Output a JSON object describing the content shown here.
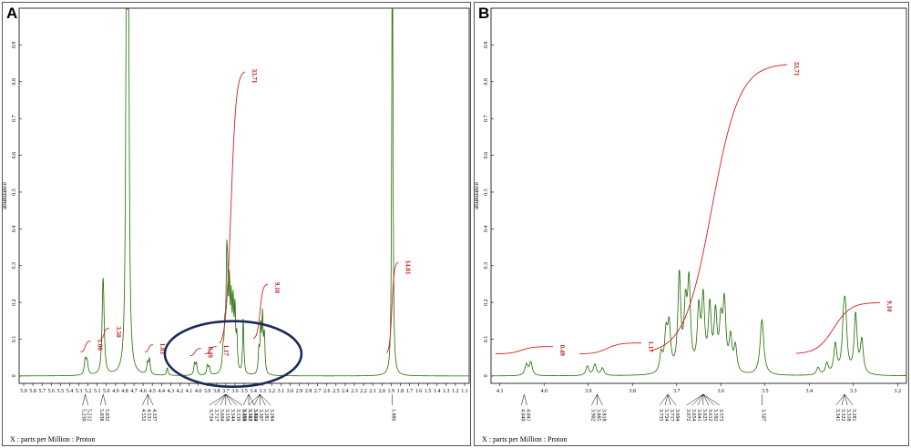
{
  "panels": [
    {
      "label": "A",
      "footer": "X : parts per Million : Proton",
      "chart_data": {
        "type": "line",
        "x_reversed": true,
        "xlim": [
          5.95,
          1.05
        ],
        "ylim": [
          -0.02,
          1.0
        ],
        "ylabel": "abundance",
        "x_ticks": [
          "5.9",
          "5.8",
          "5.7",
          "5.6",
          "5.5",
          "5.4",
          "5.3",
          "5.2",
          "5.1",
          "5.0",
          "4.9",
          "4.8",
          "4.7",
          "4.6",
          "4.5",
          "4.4",
          "4.3",
          "4.2",
          "4.1",
          "4.0",
          "3.9",
          "3.8",
          "3.7",
          "3.6",
          "3.5",
          "3.4",
          "3.3",
          "3.2",
          "3.1",
          "3.0",
          "2.9",
          "2.8",
          "2.7",
          "2.6",
          "2.5",
          "2.4",
          "2.3",
          "2.2",
          "2.1",
          "2.0",
          "1.9",
          "1.8",
          "1.7",
          "1.6",
          "1.5",
          "1.4",
          "1.3",
          "1.2",
          "1.1"
        ],
        "y_ticks": [
          "0",
          "0.1",
          "0.2",
          "0.3",
          "0.4",
          "0.5",
          "0.6",
          "0.7",
          "0.8",
          "0.9"
        ],
        "peaks": [
          {
            "x": 5.23,
            "h": 0.04,
            "w": 0.012
          },
          {
            "x": 5.21,
            "h": 0.035,
            "w": 0.012
          },
          {
            "x": 5.038,
            "h": 0.16,
            "w": 0.012
          },
          {
            "x": 5.032,
            "h": 0.12,
            "w": 0.012
          },
          {
            "x": 4.78,
            "h": 1.2,
            "w": 0.01
          },
          {
            "x": 4.76,
            "h": 1.0,
            "w": 0.01
          },
          {
            "x": 4.552,
            "h": 0.03,
            "w": 0.01
          },
          {
            "x": 4.531,
            "h": 0.04,
            "w": 0.01
          },
          {
            "x": 4.337,
            "h": 0.02,
            "w": 0.01
          },
          {
            "x": 4.04,
            "h": 0.03,
            "w": 0.01
          },
          {
            "x": 4.02,
            "h": 0.03,
            "w": 0.01
          },
          {
            "x": 3.9,
            "h": 0.025,
            "w": 0.01
          },
          {
            "x": 3.88,
            "h": 0.02,
            "w": 0.01
          },
          {
            "x": 3.73,
            "h": 0.05,
            "w": 0.01
          },
          {
            "x": 3.71,
            "h": 0.1,
            "w": 0.01
          },
          {
            "x": 3.69,
            "h": 0.25,
            "w": 0.008
          },
          {
            "x": 3.68,
            "h": 0.18,
            "w": 0.008
          },
          {
            "x": 3.66,
            "h": 0.21,
            "w": 0.008
          },
          {
            "x": 3.64,
            "h": 0.17,
            "w": 0.008
          },
          {
            "x": 3.62,
            "h": 0.17,
            "w": 0.008
          },
          {
            "x": 3.6,
            "h": 0.16,
            "w": 0.008
          },
          {
            "x": 3.58,
            "h": 0.09,
            "w": 0.008
          },
          {
            "x": 3.51,
            "h": 0.15,
            "w": 0.008
          },
          {
            "x": 3.34,
            "h": 0.06,
            "w": 0.008
          },
          {
            "x": 3.32,
            "h": 0.12,
            "w": 0.008
          },
          {
            "x": 3.3,
            "h": 0.15,
            "w": 0.008
          },
          {
            "x": 3.28,
            "h": 0.1,
            "w": 0.008
          },
          {
            "x": 1.888,
            "h": 1.0,
            "w": 0.006
          },
          {
            "x": 1.884,
            "h": 0.7,
            "w": 0.006
          }
        ],
        "integrals": [
          {
            "from": 5.28,
            "to": 5.17,
            "y0": 0.065,
            "rise": 0.03,
            "label": "1.00"
          },
          {
            "from": 5.07,
            "to": 4.97,
            "y0": 0.1,
            "rise": 0.03,
            "label": "3.50"
          },
          {
            "from": 4.58,
            "to": 4.49,
            "y0": 0.065,
            "rise": 0.02,
            "label": "1.03"
          },
          {
            "from": 4.09,
            "to": 3.97,
            "y0": 0.055,
            "rise": 0.02,
            "label": "0.49"
          },
          {
            "from": 3.93,
            "to": 3.8,
            "y0": 0.06,
            "rise": 0.02,
            "label": "1.17"
          },
          {
            "from": 3.77,
            "to": 3.49,
            "y0": 0.08,
            "rise": 0.75,
            "label": "33.71"
          },
          {
            "from": 3.4,
            "to": 3.24,
            "y0": 0.1,
            "rise": 0.15,
            "label": "9.10"
          },
          {
            "from": 1.95,
            "to": 1.82,
            "y0": 0.06,
            "rise": 0.25,
            "label": "14.81"
          }
        ],
        "peak_labels": [
          {
            "x": 5.23,
            "labels": [
              "5.230",
              "5.212"
            ]
          },
          {
            "x": 5.035,
            "labels": [
              "5.038",
              "5.032"
            ]
          },
          {
            "x": 4.55,
            "labels": [
              "4.552",
              "4.531",
              "4.337"
            ]
          },
          {
            "x": 3.7,
            "labels": [
              "3.724",
              "3.717",
              "3.694",
              "3.558",
              "3.544",
              "3.539",
              "3.438"
            ]
          },
          {
            "x": 3.45,
            "labels": [
              "3.369",
              "3.361",
              "3.404"
            ]
          },
          {
            "x": 3.33,
            "labels": [
              "3.312",
              "3.322",
              "3.307",
              "3.281",
              "3.284"
            ]
          },
          {
            "x": 1.886,
            "labels": [
              "1.886"
            ]
          }
        ]
      }
    },
    {
      "label": "B",
      "footer": "X : parts per Million : Proton",
      "chart_data": {
        "type": "line",
        "x_reversed": true,
        "xlim": [
          4.12,
          3.18
        ],
        "ylim": [
          -0.02,
          1.0
        ],
        "ylabel": "abundance",
        "x_ticks": [
          "4.1",
          "4.0",
          "3.9",
          "3.8",
          "3.7",
          "3.6",
          "3.5",
          "3.4",
          "3.3",
          "3.2"
        ],
        "y_ticks": [
          "0",
          "0.1",
          "0.2",
          "0.3",
          "0.4",
          "0.5",
          "0.6",
          "0.7",
          "0.8",
          "0.9"
        ],
        "peaks": [
          {
            "x": 4.04,
            "h": 0.03,
            "w": 0.004
          },
          {
            "x": 4.03,
            "h": 0.035,
            "w": 0.004
          },
          {
            "x": 3.902,
            "h": 0.025,
            "w": 0.004
          },
          {
            "x": 3.885,
            "h": 0.03,
            "w": 0.004
          },
          {
            "x": 3.868,
            "h": 0.02,
            "w": 0.004
          },
          {
            "x": 3.735,
            "h": 0.05,
            "w": 0.004
          },
          {
            "x": 3.724,
            "h": 0.1,
            "w": 0.004
          },
          {
            "x": 3.717,
            "h": 0.12,
            "w": 0.004
          },
          {
            "x": 3.694,
            "h": 0.26,
            "w": 0.004
          },
          {
            "x": 3.68,
            "h": 0.16,
            "w": 0.004
          },
          {
            "x": 3.672,
            "h": 0.23,
            "w": 0.004
          },
          {
            "x": 3.65,
            "h": 0.16,
            "w": 0.004
          },
          {
            "x": 3.64,
            "h": 0.19,
            "w": 0.004
          },
          {
            "x": 3.625,
            "h": 0.17,
            "w": 0.004
          },
          {
            "x": 3.612,
            "h": 0.15,
            "w": 0.004
          },
          {
            "x": 3.6,
            "h": 0.12,
            "w": 0.004
          },
          {
            "x": 3.592,
            "h": 0.18,
            "w": 0.004
          },
          {
            "x": 3.578,
            "h": 0.09,
            "w": 0.004
          },
          {
            "x": 3.567,
            "h": 0.07,
            "w": 0.004
          },
          {
            "x": 3.507,
            "h": 0.15,
            "w": 0.005
          },
          {
            "x": 3.38,
            "h": 0.02,
            "w": 0.004
          },
          {
            "x": 3.36,
            "h": 0.03,
            "w": 0.004
          },
          {
            "x": 3.341,
            "h": 0.08,
            "w": 0.004
          },
          {
            "x": 3.322,
            "h": 0.12,
            "w": 0.004
          },
          {
            "x": 3.318,
            "h": 0.14,
            "w": 0.004
          },
          {
            "x": 3.295,
            "h": 0.16,
            "w": 0.004
          },
          {
            "x": 3.281,
            "h": 0.09,
            "w": 0.004
          }
        ],
        "integrals": [
          {
            "from": 4.11,
            "to": 3.98,
            "y0": 0.06,
            "rise": 0.02,
            "label": "0.49"
          },
          {
            "from": 3.92,
            "to": 3.78,
            "y0": 0.06,
            "rise": 0.03,
            "label": "1.17"
          },
          {
            "from": 3.76,
            "to": 3.45,
            "y0": 0.06,
            "rise": 0.79,
            "label": "33.71"
          },
          {
            "from": 3.43,
            "to": 3.24,
            "y0": 0.06,
            "rise": 0.14,
            "label": "9.10"
          }
        ],
        "peak_labels": [
          {
            "x": 4.045,
            "labels": [
              "4.040",
              "4.041"
            ]
          },
          {
            "x": 3.88,
            "labels": [
              "3.902",
              "3.885",
              "3.818"
            ]
          },
          {
            "x": 3.72,
            "labels": [
              "3.735",
              "3.724",
              "3.717",
              "3.694"
            ]
          },
          {
            "x": 3.64,
            "labels": [
              "3.672",
              "3.654",
              "3.641",
              "3.625",
              "3.612",
              "3.592",
              "3.573"
            ]
          },
          {
            "x": 3.507,
            "labels": [
              "3.507"
            ]
          },
          {
            "x": 3.32,
            "labels": [
              "3.341",
              "3.322",
              "3.318",
              "3.281"
            ]
          }
        ]
      }
    }
  ],
  "colors": {
    "spectrum": "#1e6b00",
    "integral": "#d42020",
    "label": "#c01818",
    "highlight": "#1a2a5a",
    "axis": "#000000"
  }
}
